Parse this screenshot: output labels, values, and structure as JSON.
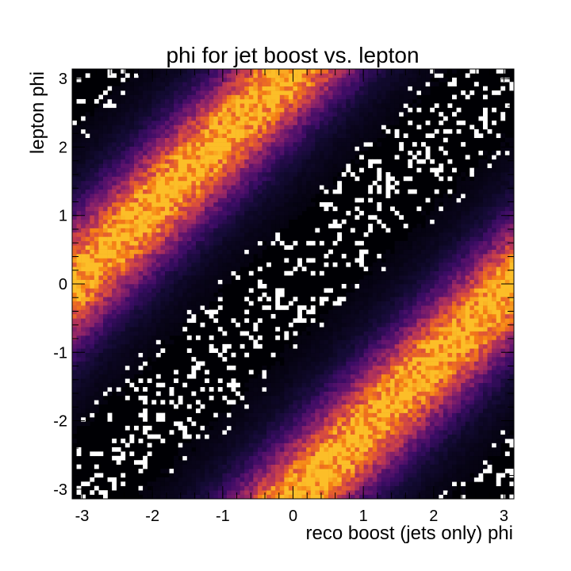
{
  "chart_data": {
    "type": "heatmap",
    "title": "phi for jet boost vs. lepton",
    "xlabel": "reco boost (jets only) phi",
    "ylabel": "lepton phi",
    "xlim": [
      -3.1416,
      3.1416
    ],
    "ylim": [
      -3.1416,
      3.1416
    ],
    "x_ticks": [
      -3,
      -2,
      -1,
      0,
      1,
      2,
      3
    ],
    "y_ticks": [
      -3,
      -2,
      -1,
      0,
      1,
      2,
      3
    ],
    "x_tick_labels": [
      "-3",
      "-2",
      "-1",
      "0",
      "1",
      "2",
      "3"
    ],
    "y_tick_labels": [
      "-3",
      "-2",
      "-1",
      "0",
      "1",
      "2",
      "3"
    ],
    "bins": [
      100,
      100
    ],
    "colormap": "inferno",
    "zero_bin_color": "#ffffff",
    "description_of_density": {
      "high_density_bands": [
        {
          "relation": "lepton_phi = reco_phi + pi (wrapped)",
          "peak_relative": 1.0
        },
        {
          "relation": "lepton_phi = reco_phi - pi (wrapped)",
          "peak_relative": 1.0
        }
      ],
      "low_density_band": {
        "relation": "lepton_phi = reco_phi",
        "has_empty_bins": true
      },
      "band_width_rad": 0.55
    },
    "grid": false,
    "legend": "none"
  }
}
